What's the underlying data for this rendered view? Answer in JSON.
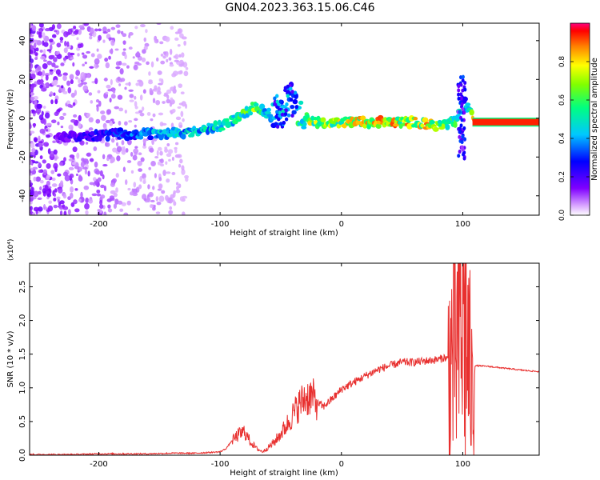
{
  "title": "GN04.2023.363.15.06.C46",
  "colors": {
    "line": "#e8302f",
    "trace_low": "#7f00ff",
    "trace_mid": "#00ff80",
    "trace_high": "#ff2000"
  },
  "chart_data": [
    {
      "type": "heatmap",
      "name": "spectrogram",
      "xlabel": "Height of straight line (km)",
      "ylabel": "Frequency (Hz)",
      "xlim": [
        -257,
        163
      ],
      "ylim": [
        -50,
        49
      ],
      "x_ticks": [
        -200,
        -100,
        0,
        100
      ],
      "y_ticks": [
        -40,
        -20,
        0,
        20,
        40
      ],
      "colorbar": {
        "label": "Normalized spectral amplitude",
        "range": [
          0,
          1
        ],
        "ticks": [
          0.0,
          0.2,
          0.4,
          0.6,
          0.8
        ],
        "colormap": "rainbow (purple to red)"
      },
      "trace": [
        {
          "x": -210,
          "f": -9,
          "amp": 0.25
        },
        {
          "x": -180,
          "f": -8,
          "amp": 0.35
        },
        {
          "x": -150,
          "f": -8,
          "amp": 0.45
        },
        {
          "x": -120,
          "f": -7,
          "amp": 0.5
        },
        {
          "x": -100,
          "f": -4,
          "amp": 0.55
        },
        {
          "x": -85,
          "f": 0,
          "amp": 0.6
        },
        {
          "x": -72,
          "f": 6,
          "amp": 0.7
        },
        {
          "x": -60,
          "f": 2,
          "amp": 0.45
        },
        {
          "x": -50,
          "f": 5,
          "amp": 0.4
        },
        {
          "x": -40,
          "f": 12,
          "amp": 0.35
        },
        {
          "x": -35,
          "f": 2,
          "amp": 0.6
        },
        {
          "x": -25,
          "f": -1,
          "amp": 0.75
        },
        {
          "x": -15,
          "f": -3,
          "amp": 0.7
        },
        {
          "x": 0,
          "f": -2,
          "amp": 0.8
        },
        {
          "x": 30,
          "f": -2,
          "amp": 0.85
        },
        {
          "x": 60,
          "f": -2,
          "amp": 0.85
        },
        {
          "x": 80,
          "f": -4,
          "amp": 0.8
        },
        {
          "x": 95,
          "f": -2,
          "amp": 0.6
        },
        {
          "x": 100,
          "f": 10,
          "amp": 0.3
        },
        {
          "x": 110,
          "f": -2,
          "amp": 0.95
        },
        {
          "x": 163,
          "f": -2,
          "amp": 0.95
        }
      ]
    },
    {
      "type": "line",
      "name": "snr",
      "xlabel": "Height of straight line (km)",
      "ylabel": "SNR (10 * v/v)",
      "y_multiplier": "(x10⁴)",
      "xlim": [
        -257,
        163
      ],
      "ylim": [
        0,
        2.85
      ],
      "x_ticks": [
        -200,
        -100,
        0,
        100
      ],
      "y_ticks": [
        0.0,
        0.5,
        1.0,
        1.5,
        2.0,
        2.5
      ],
      "x": [
        -257,
        -240,
        -220,
        -200,
        -180,
        -160,
        -140,
        -120,
        -110,
        -100,
        -95,
        -90,
        -85,
        -80,
        -75,
        -70,
        -65,
        -60,
        -55,
        -50,
        -45,
        -40,
        -35,
        -30,
        -25,
        -20,
        -15,
        -10,
        -5,
        0,
        10,
        20,
        30,
        40,
        50,
        60,
        70,
        80,
        85,
        90,
        95,
        100,
        105,
        108,
        110,
        120,
        130,
        140,
        150,
        163
      ],
      "y": [
        0.01,
        0.01,
        0.01,
        0.02,
        0.02,
        0.02,
        0.03,
        0.03,
        0.04,
        0.05,
        0.1,
        0.22,
        0.3,
        0.35,
        0.2,
        0.1,
        0.05,
        0.12,
        0.2,
        0.32,
        0.45,
        0.6,
        0.75,
        0.85,
        0.88,
        0.78,
        0.72,
        0.8,
        0.88,
        0.98,
        1.08,
        1.18,
        1.27,
        1.33,
        1.38,
        1.38,
        1.4,
        1.42,
        1.45,
        1.4,
        1.6,
        2.2,
        1.4,
        0.8,
        1.33,
        1.32,
        1.3,
        1.28,
        1.26,
        1.24
      ]
    }
  ]
}
